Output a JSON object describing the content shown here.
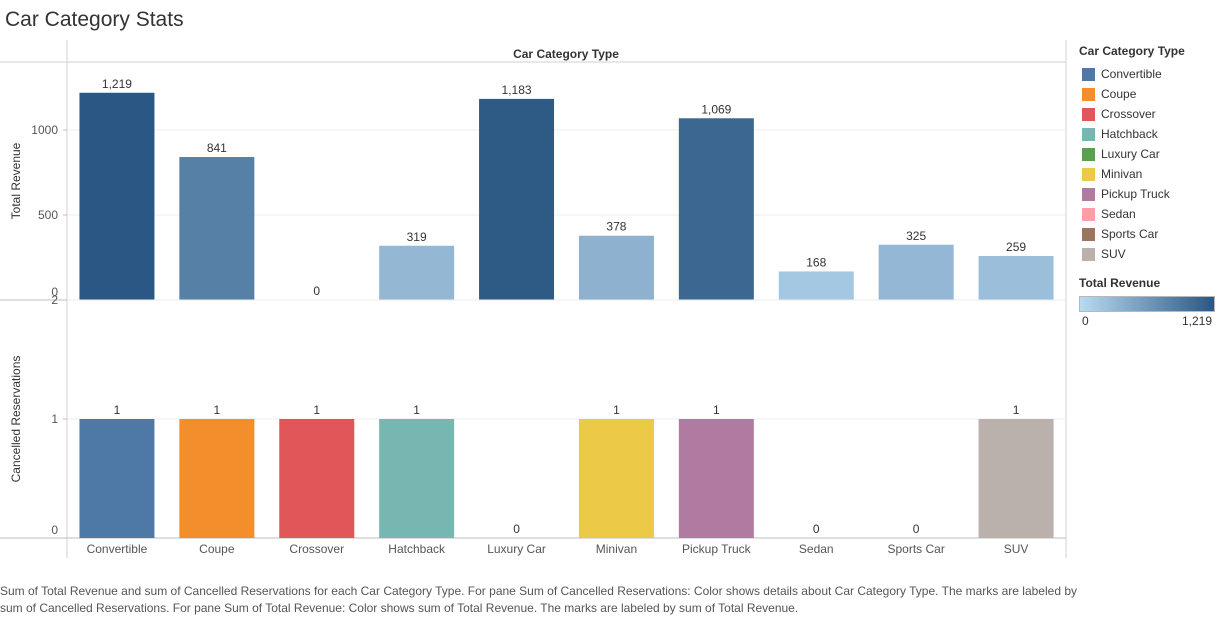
{
  "page": {
    "title": "Car Category Stats"
  },
  "chart_data": {
    "type": "bar",
    "column_header": "Car Category Type",
    "categories": [
      "Convertible",
      "Coupe",
      "Crossover",
      "Hatchback",
      "Luxury Car",
      "Minivan",
      "Pickup Truck",
      "Sedan",
      "Sports Car",
      "SUV"
    ],
    "panes": [
      {
        "name": "Total Revenue",
        "ylabel": "Total Revenue",
        "values": [
          1219,
          841,
          0,
          319,
          1183,
          378,
          1069,
          168,
          325,
          259
        ],
        "labels": [
          "1,219",
          "841",
          "0",
          "319",
          "1,183",
          "378",
          "1,069",
          "168",
          "325",
          "259"
        ],
        "ylim": [
          0,
          1280
        ],
        "yticks": [
          0,
          500,
          1000
        ],
        "ytick_labels": [
          "0",
          "500",
          "1000"
        ],
        "color_scale": {
          "min_color": "#b9daf1",
          "max_color": "#2a5783",
          "min": 0,
          "max": 1219
        }
      },
      {
        "name": "Cancelled Reservations",
        "ylabel": "Cancelled Reservations",
        "values": [
          1,
          1,
          1,
          1,
          0,
          1,
          1,
          0,
          0,
          1
        ],
        "labels": [
          "1",
          "1",
          "1",
          "1",
          "0",
          "1",
          "1",
          "0",
          "0",
          "1"
        ],
        "ylim": [
          0,
          2
        ],
        "yticks": [
          0,
          1,
          2
        ],
        "ytick_labels": [
          "0",
          "1",
          "2"
        ]
      }
    ],
    "category_colors": [
      "#4e79a7",
      "#f28e2b",
      "#e15759",
      "#76b7b2",
      "#59a14f",
      "#edc948",
      "#b07aa1",
      "#ff9da7",
      "#9c755f",
      "#bab0ac"
    ],
    "grid": true,
    "legend_position": "right"
  },
  "legend": {
    "title": "Car Category Type",
    "items": [
      {
        "label": "Convertible",
        "color": "#4e79a7"
      },
      {
        "label": "Coupe",
        "color": "#f28e2b"
      },
      {
        "label": "Crossover",
        "color": "#e15759"
      },
      {
        "label": "Hatchback",
        "color": "#76b7b2"
      },
      {
        "label": "Luxury Car",
        "color": "#59a14f"
      },
      {
        "label": "Minivan",
        "color": "#edc948"
      },
      {
        "label": "Pickup Truck",
        "color": "#b07aa1"
      },
      {
        "label": "Sedan",
        "color": "#ff9da7"
      },
      {
        "label": "Sports Car",
        "color": "#9c755f"
      },
      {
        "label": "SUV",
        "color": "#bab0ac"
      }
    ],
    "gradient": {
      "title": "Total Revenue",
      "min_label": "0",
      "max_label": "1,219"
    }
  },
  "caption": "Sum of Total Revenue and sum of Cancelled Reservations for each Car Category Type.  For pane Sum of Cancelled Reservations:  Color shows details about Car Category Type.  The marks are labeled by sum of Cancelled Reservations.  For pane Sum of Total Revenue:  Color shows sum of Total Revenue.  The marks are labeled by sum of Total Revenue."
}
